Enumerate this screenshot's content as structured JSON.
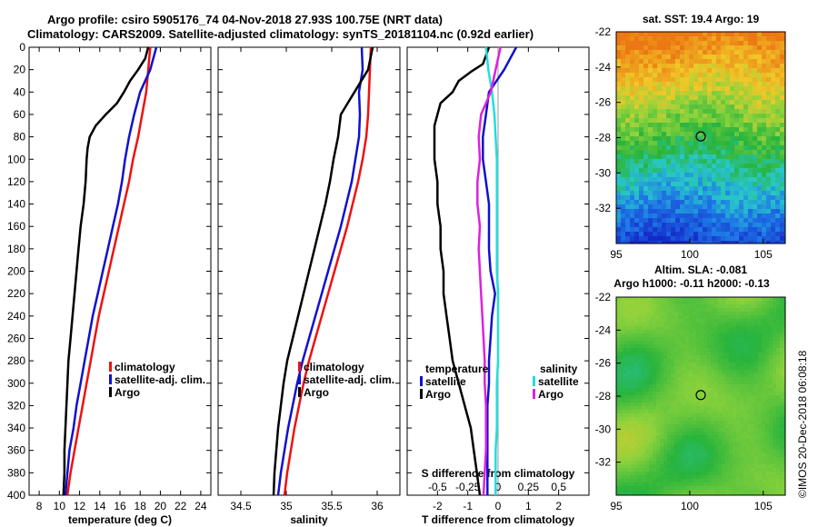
{
  "header": {
    "line1": "Argo profile: csiro 5905176_74 04-Nov-2018 27.93S 100.75E (NRT data)",
    "line2": "Climatology: CARS2009. Satellite-adjusted climatology: synTS_20181104.nc (0.92d earlier)"
  },
  "colors": {
    "climatology": "#ee1111",
    "satellite": "#1111cc",
    "argo": "#000000",
    "sat_salinity": "#22dddd",
    "argo_salinity": "#dd22dd"
  },
  "depth_ticks": [
    0,
    20,
    40,
    60,
    80,
    100,
    120,
    140,
    160,
    180,
    200,
    220,
    240,
    260,
    280,
    300,
    320,
    340,
    360,
    380,
    400
  ],
  "chart_data": [
    {
      "type": "line",
      "id": "temperature",
      "xlabel": "temperature (deg C)",
      "xlim": [
        7,
        25
      ],
      "ylim": [
        0,
        400
      ],
      "xticks": [
        8,
        10,
        12,
        14,
        16,
        18,
        20,
        22,
        24
      ],
      "legend": "bottom-right",
      "series": [
        {
          "name": "climatology",
          "color": "#ee1111",
          "depth": [
            0,
            20,
            40,
            60,
            80,
            100,
            120,
            140,
            160,
            180,
            200,
            220,
            240,
            260,
            280,
            300,
            320,
            340,
            360,
            380,
            400
          ],
          "values": [
            19.0,
            18.8,
            18.6,
            18.2,
            17.8,
            17.3,
            16.9,
            16.4,
            15.9,
            15.4,
            14.9,
            14.4,
            13.9,
            13.5,
            13.1,
            12.7,
            12.3,
            11.9,
            11.5,
            11.1,
            10.8
          ]
        },
        {
          "name": "satellite-adj. clim.",
          "color": "#1111cc",
          "depth": [
            0,
            20,
            40,
            60,
            80,
            100,
            120,
            140,
            160,
            180,
            200,
            220,
            240,
            260,
            280,
            300,
            320,
            340,
            360,
            380,
            400
          ],
          "values": [
            19.6,
            19.0,
            18.0,
            17.4,
            16.9,
            16.5,
            16.2,
            15.8,
            15.3,
            14.8,
            14.3,
            13.8,
            13.3,
            12.9,
            12.5,
            12.1,
            11.7,
            11.4,
            11.0,
            10.8,
            10.6
          ]
        },
        {
          "name": "Argo",
          "color": "#000000",
          "depth": [
            0,
            10,
            20,
            30,
            40,
            50,
            60,
            70,
            80,
            90,
            100,
            120,
            140,
            160,
            180,
            200,
            220,
            240,
            260,
            280,
            300,
            320,
            340,
            360,
            380,
            400
          ],
          "values": [
            18.8,
            18.5,
            17.8,
            17.0,
            16.4,
            15.7,
            14.6,
            13.6,
            13.0,
            12.8,
            12.7,
            12.6,
            12.4,
            12.1,
            11.9,
            11.7,
            11.5,
            11.3,
            11.1,
            10.9,
            10.8,
            10.7,
            10.6,
            10.5,
            10.5,
            10.4
          ]
        }
      ]
    },
    {
      "type": "line",
      "id": "salinity",
      "xlabel": "salinity",
      "xlim": [
        34.25,
        36.25
      ],
      "ylim": [
        0,
        400
      ],
      "xticks": [
        34.5,
        35,
        35.5,
        36
      ],
      "xticklabels": [
        "34.5",
        "35",
        "35.5",
        "36"
      ],
      "legend": "bottom-right",
      "series": [
        {
          "name": "climatology",
          "color": "#ee1111",
          "depth": [
            0,
            20,
            40,
            60,
            80,
            100,
            120,
            140,
            160,
            180,
            200,
            220,
            240,
            260,
            280,
            300,
            320,
            340,
            360,
            380,
            400
          ],
          "values": [
            35.93,
            35.92,
            35.91,
            35.9,
            35.88,
            35.84,
            35.79,
            35.73,
            35.67,
            35.6,
            35.53,
            35.46,
            35.39,
            35.32,
            35.25,
            35.19,
            35.14,
            35.09,
            35.05,
            35.01,
            34.98
          ]
        },
        {
          "name": "satellite-adj. clim.",
          "color": "#1111cc",
          "depth": [
            0,
            20,
            40,
            60,
            80,
            100,
            120,
            140,
            160,
            180,
            200,
            220,
            240,
            260,
            280,
            300,
            320,
            340,
            360,
            380,
            400
          ],
          "values": [
            35.83,
            35.84,
            35.8,
            35.81,
            35.8,
            35.76,
            35.72,
            35.66,
            35.6,
            35.53,
            35.46,
            35.39,
            35.32,
            35.25,
            35.18,
            35.12,
            35.07,
            35.02,
            34.98,
            34.94,
            34.91
          ]
        },
        {
          "name": "Argo",
          "color": "#000000",
          "depth": [
            0,
            20,
            40,
            60,
            80,
            100,
            120,
            140,
            160,
            180,
            200,
            220,
            240,
            260,
            280,
            300,
            320,
            340,
            360,
            380,
            400
          ],
          "values": [
            35.95,
            35.9,
            35.75,
            35.6,
            35.57,
            35.52,
            35.48,
            35.43,
            35.37,
            35.31,
            35.25,
            35.19,
            35.13,
            35.07,
            35.01,
            34.97,
            34.94,
            34.91,
            34.89,
            34.87,
            34.86
          ]
        }
      ]
    },
    {
      "type": "line",
      "id": "difference",
      "xlabel": "T difference from climatology",
      "top_xlabel": "S difference from climatology",
      "xlim": [
        -3,
        3
      ],
      "ylim": [
        0,
        400
      ],
      "xticks": [
        -2,
        -1,
        0,
        1,
        2
      ],
      "top_xticks": [
        -0.5,
        -0.25,
        0,
        0.25,
        0.5
      ],
      "top_xticklabels": [
        "-0.5",
        "-0.25",
        "0",
        "0.25",
        "0.5"
      ],
      "legend_temperature": "temperature",
      "legend_salinity": "salinity",
      "series": [
        {
          "name": "satellite",
          "group": "temperature",
          "color": "#1111cc",
          "depth": [
            0,
            20,
            40,
            60,
            80,
            100,
            120,
            140,
            160,
            180,
            200,
            220,
            240,
            260,
            280,
            300,
            320,
            340,
            360,
            380,
            400
          ],
          "values": [
            0.6,
            0.2,
            -0.3,
            -0.4,
            -0.5,
            -0.5,
            -0.4,
            -0.3,
            -0.3,
            -0.3,
            -0.25,
            -0.1,
            -0.2,
            -0.25,
            -0.3,
            -0.3,
            -0.35,
            -0.35,
            -0.35,
            -0.35,
            -0.35
          ]
        },
        {
          "name": "Argo",
          "group": "temperature",
          "color": "#000000",
          "depth": [
            0,
            15,
            22,
            30,
            40,
            50,
            60,
            70,
            80,
            90,
            100,
            120,
            140,
            160,
            180,
            200,
            220,
            240,
            260,
            280,
            300,
            320,
            340,
            360,
            380,
            400
          ],
          "values": [
            -0.3,
            -0.5,
            -0.9,
            -1.3,
            -1.5,
            -1.9,
            -2.0,
            -2.1,
            -2.1,
            -2.1,
            -2.1,
            -2.0,
            -2.0,
            -1.9,
            -1.9,
            -1.8,
            -1.8,
            -1.7,
            -1.6,
            -1.5,
            -1.3,
            -1.1,
            -0.9,
            -0.8,
            -0.7,
            -0.6
          ]
        },
        {
          "name": "satellite",
          "group": "salinity",
          "color": "#22dddd",
          "depth": [
            0,
            20,
            40,
            60,
            80,
            100,
            120,
            140,
            160,
            180,
            200,
            220,
            240,
            260,
            280,
            300,
            320,
            340,
            360,
            380,
            400
          ],
          "values": [
            -0.1,
            -0.08,
            -0.05,
            -0.03,
            -0.02,
            -0.01,
            -0.01,
            -0.01,
            -0.01,
            -0.01,
            -0.01,
            0.0,
            0.0,
            0.0,
            0.0,
            -0.01,
            -0.01,
            -0.01,
            -0.02,
            -0.02,
            -0.02
          ]
        },
        {
          "name": "Argo",
          "group": "salinity",
          "color": "#dd22dd",
          "depth": [
            0,
            20,
            40,
            60,
            80,
            100,
            120,
            140,
            160,
            180,
            200,
            220,
            240,
            260,
            280,
            300,
            320,
            340,
            360,
            380,
            400
          ],
          "values": [
            0.02,
            -0.02,
            -0.06,
            -0.14,
            -0.16,
            -0.15,
            -0.17,
            -0.17,
            -0.15,
            -0.16,
            -0.15,
            -0.14,
            -0.13,
            -0.12,
            -0.11,
            -0.11,
            -0.1,
            -0.1,
            -0.1,
            -0.11,
            -0.12
          ]
        }
      ]
    },
    {
      "type": "heatmap",
      "id": "sst_map",
      "title": "sat. SST: 19.4 Argo: 19",
      "xlim": [
        95,
        106.5
      ],
      "ylim": [
        -34,
        -22
      ],
      "xticks": [
        95,
        100,
        105
      ],
      "yticks": [
        -22,
        -24,
        -26,
        -28,
        -30,
        -32
      ],
      "marker": {
        "lon": 100.75,
        "lat": -27.93
      }
    },
    {
      "type": "heatmap",
      "id": "sla_map",
      "title": "Altim. SLA: -0.081",
      "subtitle": "Argo h1000: -0.11 h2000: -0.13",
      "xlim": [
        95,
        106.5
      ],
      "ylim": [
        -34,
        -22
      ],
      "xticks": [
        95,
        100,
        105
      ],
      "yticks": [
        -22,
        -24,
        -26,
        -28,
        -30,
        -32
      ],
      "marker": {
        "lon": 100.75,
        "lat": -27.93
      }
    }
  ],
  "stamp": "©IMOS 20-Dec-2018 06:08:18"
}
